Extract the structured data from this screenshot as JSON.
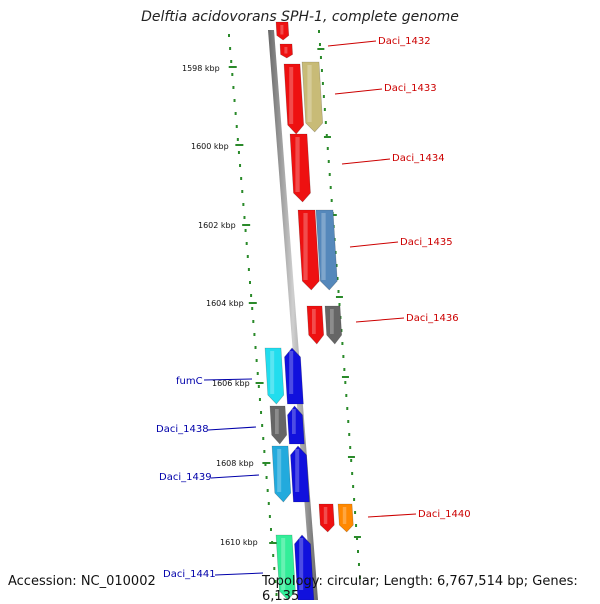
{
  "title": "Delftia acidovorans SPH-1, complete genome",
  "footer": {
    "accession": "Accession: NC_010002",
    "topology": "Topology: circular; Length: 6,767,514 bp; Genes: 6,135"
  },
  "ticks": [
    "1598 kbp",
    "1600 kbp",
    "1602 kbp",
    "1604 kbp",
    "1606 kbp",
    "1608 kbp",
    "1610 kbp"
  ],
  "genes_right": [
    "Daci_1432",
    "Daci_1433",
    "Daci_1434",
    "Daci_1435",
    "Daci_1436",
    "Daci_1440"
  ],
  "genes_left": [
    "fumC",
    "Daci_1438",
    "Daci_1439",
    "Daci_1441"
  ],
  "colors": {
    "backbone": "#888888",
    "ticks": "#2a8a2a",
    "red": "#ee1111",
    "olive": "#c8bb77",
    "steel": "#5588bb",
    "gray": "#666666",
    "cyan": "#22ddee",
    "cyan_dark": "#22aadd",
    "blue": "#1111dd",
    "orange": "#ff8800",
    "teal": "#33ee99"
  }
}
